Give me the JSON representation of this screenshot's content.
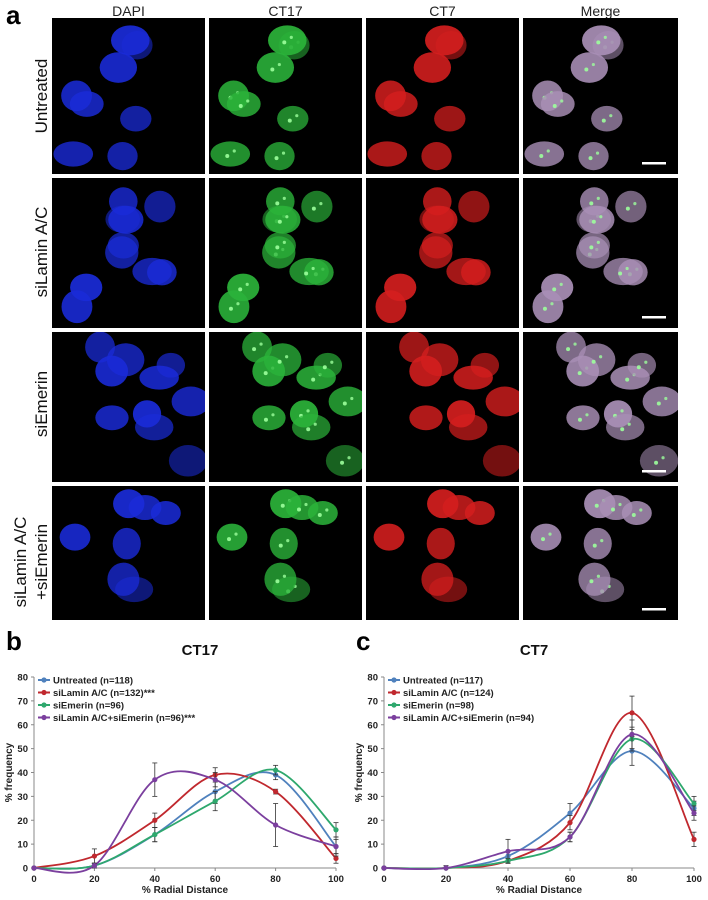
{
  "figure": {
    "panel_a": "a",
    "panel_b": "b",
    "panel_c": "c",
    "columns": [
      "DAPI",
      "CT17",
      "CT7",
      "Merge"
    ],
    "rows": [
      "Untreated",
      "siLamin A/C",
      "siEmerin",
      "siLamin A/C\n+siEmerin"
    ],
    "channel_colors": {
      "DAPI": "#1a2bd8",
      "CT17": "#2bb33a",
      "CT7": "#d41e1e",
      "Merge": "#a98fb6"
    }
  },
  "chart_data": [
    {
      "type": "line",
      "title": "CT17",
      "xlabel": "% Radial Distance",
      "ylabel": "% frequency",
      "x": [
        0,
        20,
        40,
        60,
        80,
        100
      ],
      "xlim": [
        0,
        100
      ],
      "ylim": [
        0,
        80
      ],
      "xticks": [
        0,
        20,
        40,
        60,
        80,
        100
      ],
      "yticks": [
        0,
        10,
        20,
        30,
        40,
        50,
        60,
        70,
        80
      ],
      "legend_position": "top-left",
      "series": [
        {
          "name": "Untreated (n=118)",
          "color": "#4f81bd",
          "values": [
            0,
            1,
            14,
            32,
            39,
            9
          ],
          "err": [
            0,
            1,
            3,
            5,
            2,
            3
          ]
        },
        {
          "name": "siLamin A/C (n=132)***",
          "color": "#c0282e",
          "values": [
            0,
            5,
            20,
            39,
            32,
            4
          ],
          "err": [
            0,
            3,
            3,
            3,
            1,
            2
          ]
        },
        {
          "name": "siEmerin (n=96)",
          "color": "#2ea86d",
          "values": [
            0,
            1,
            14,
            28,
            41,
            16
          ],
          "err": [
            0,
            1,
            3,
            4,
            2,
            3
          ]
        },
        {
          "name": "siLamin A/C+siEmerin (n=96)***",
          "color": "#7b3f9e",
          "values": [
            0,
            1,
            37,
            37,
            18,
            9
          ],
          "err": [
            0,
            1,
            7,
            3,
            9,
            4
          ]
        }
      ]
    },
    {
      "type": "line",
      "title": "CT7",
      "xlabel": "% Radial Distance",
      "ylabel": "% frequency",
      "x": [
        0,
        20,
        40,
        60,
        80,
        100
      ],
      "xlim": [
        0,
        100
      ],
      "ylim": [
        0,
        80
      ],
      "xticks": [
        0,
        20,
        40,
        60,
        80,
        100
      ],
      "yticks": [
        0,
        10,
        20,
        30,
        40,
        50,
        60,
        70,
        80
      ],
      "legend_position": "top-left",
      "series": [
        {
          "name": "Untreated (n=117)",
          "color": "#4f81bd",
          "values": [
            0,
            0,
            5,
            23,
            49,
            25
          ],
          "err": [
            0,
            0,
            2,
            4,
            6,
            3
          ]
        },
        {
          "name": "siLamin A/C (n=124)",
          "color": "#c0282e",
          "values": [
            0,
            0,
            3,
            19,
            65,
            12
          ],
          "err": [
            0,
            0,
            1,
            3,
            7,
            3
          ]
        },
        {
          "name": "siEmerin (n=98)",
          "color": "#2ea86d",
          "values": [
            0,
            0,
            3,
            13,
            54,
            27
          ],
          "err": [
            0,
            0,
            1,
            2,
            5,
            3
          ]
        },
        {
          "name": "siLamin A/C+siEmerin (n=94)",
          "color": "#7b3f9e",
          "values": [
            0,
            0,
            7,
            13,
            56,
            23
          ],
          "err": [
            0,
            1,
            5,
            2,
            6,
            3
          ]
        }
      ]
    }
  ]
}
